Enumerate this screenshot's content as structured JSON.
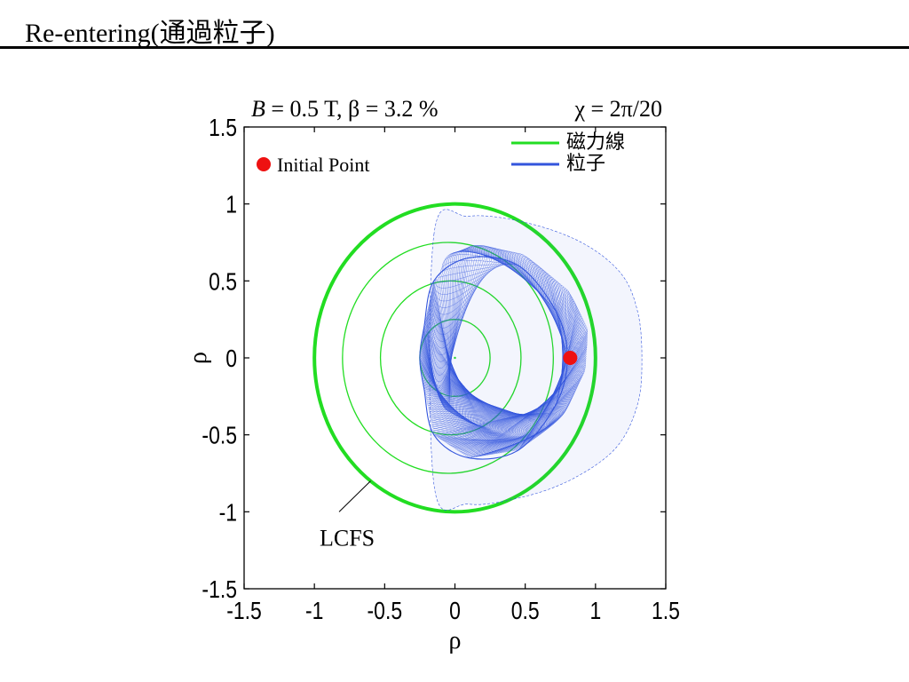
{
  "slide": {
    "title": "Re-entering(通過粒子)"
  },
  "chart_data": {
    "type": "line",
    "header_left": "B = 0.5 T, β = 3.2 %",
    "header_left_parts": [
      "B",
      " = 0.5 T, β = 3.2 %"
    ],
    "header_right": "χ = 2π/20",
    "xlabel": "ρ",
    "ylabel": "ρ",
    "xlim": [
      -1.5,
      1.5
    ],
    "ylim": [
      -1.5,
      1.5
    ],
    "xticks": [
      -1.5,
      -1,
      -0.5,
      0,
      0.5,
      1,
      1.5
    ],
    "xtick_labels": [
      "-1.5",
      "-1",
      "-0.5",
      "0",
      "0.5",
      "1",
      "1.5"
    ],
    "yticks": [
      1.5,
      1,
      0.5,
      0,
      -0.5,
      -1,
      -1.5
    ],
    "ytick_labels": [
      "1.5",
      "1",
      "0.5",
      "0",
      "-0.5",
      "-1",
      "-1.5"
    ],
    "grid": false,
    "legend": {
      "placement": "top-right",
      "entries": [
        {
          "name": "磁力線",
          "color": "#22dd22"
        },
        {
          "name": "粒子",
          "color": "#3355dd"
        }
      ]
    },
    "series": [
      {
        "name": "磁力線",
        "color": "#22dd22",
        "kind": "flux-surfaces",
        "surfaces": [
          {
            "center": [
              0.0,
              0.0
            ],
            "radius": 1.0,
            "bold": true
          },
          {
            "center": [
              -0.05,
              0.0
            ],
            "radius": 0.75
          },
          {
            "center": [
              -0.03,
              0.0
            ],
            "radius": 0.5
          },
          {
            "center": [
              0.0,
              0.0
            ],
            "radius": 0.25
          },
          {
            "center": [
              0.0,
              0.0
            ],
            "radius": 0.0
          }
        ]
      },
      {
        "name": "粒子",
        "color": "#3355dd",
        "kind": "orbit-band",
        "inner_boundary": [
          [
            0.1,
            0.65
          ],
          [
            0.45,
            0.6
          ],
          [
            0.72,
            0.3
          ],
          [
            0.8,
            0.0
          ],
          [
            0.72,
            -0.3
          ],
          [
            0.45,
            -0.6
          ],
          [
            0.1,
            -0.65
          ],
          [
            -0.15,
            -0.5
          ],
          [
            -0.22,
            -0.2
          ],
          [
            -0.25,
            0.0
          ],
          [
            -0.22,
            0.2
          ],
          [
            -0.15,
            0.5
          ]
        ],
        "outer_boundary": [
          [
            -0.15,
            0.8
          ],
          [
            0.1,
            0.92
          ],
          [
            0.5,
            0.88
          ],
          [
            0.9,
            0.75
          ],
          [
            1.18,
            0.55
          ],
          [
            1.3,
            0.3
          ],
          [
            1.33,
            0.0
          ],
          [
            1.3,
            -0.3
          ],
          [
            1.15,
            -0.58
          ],
          [
            0.85,
            -0.78
          ],
          [
            0.5,
            -0.9
          ],
          [
            0.1,
            -0.95
          ],
          [
            -0.15,
            -0.82
          ]
        ]
      }
    ],
    "markers": [
      {
        "label": "Initial Point",
        "x": 0.82,
        "y": 0.0,
        "color": "#ee1111"
      }
    ],
    "annotations": [
      {
        "text": "LCFS",
        "arrow_to": [
          -0.6,
          -0.8
        ],
        "text_at": [
          -0.9,
          -1.15
        ]
      }
    ]
  }
}
